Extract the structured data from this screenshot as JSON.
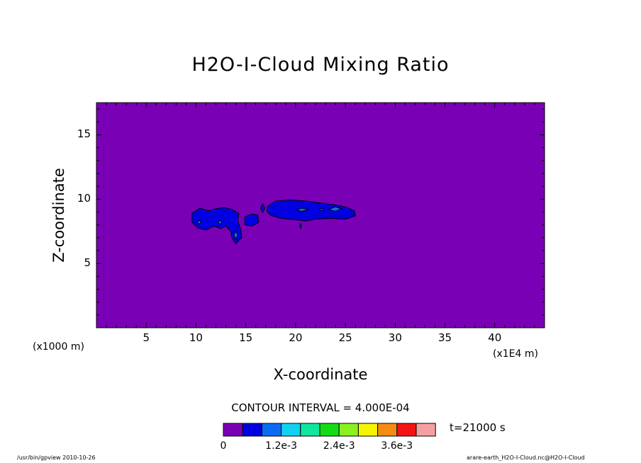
{
  "chart_data": {
    "type": "heatmap",
    "title": "H2O-I-Cloud Mixing Ratio",
    "xlabel": "X-coordinate",
    "ylabel": "Z-coordinate",
    "x_unit_left": "(x1000 m)",
    "x_unit_right": "(x1E4 m)",
    "xlim": [
      0,
      45
    ],
    "ylim": [
      0,
      17.5
    ],
    "x_ticks": [
      5,
      10,
      15,
      20,
      25,
      30,
      35,
      40
    ],
    "y_ticks": [
      5,
      10,
      15
    ],
    "contour_interval_text": "CONTOUR INTERVAL = 4.000E-04",
    "time_label": "t=21000 s",
    "colorbar": {
      "colors": [
        "#7a00b5",
        "#0000e0",
        "#0a6cf5",
        "#0fd2f0",
        "#0fe6a0",
        "#14dc14",
        "#8cf01e",
        "#f5f500",
        "#f58c14",
        "#f51414",
        "#f5a0a0"
      ],
      "labels": [
        "0",
        "1.2e-3",
        "2.4e-3",
        "3.6e-3"
      ],
      "label_positions": [
        0,
        3,
        6,
        9
      ]
    },
    "background_color": "#7a00b5",
    "regions": [
      {
        "level": 1,
        "points": [
          [
            9.6,
            8.9
          ],
          [
            10.4,
            9.3
          ],
          [
            11.2,
            9.1
          ],
          [
            12.0,
            9.25
          ],
          [
            12.8,
            9.35
          ],
          [
            13.6,
            9.2
          ],
          [
            14.3,
            8.9
          ],
          [
            14.2,
            8.3
          ],
          [
            14.5,
            7.6
          ],
          [
            14.6,
            7.0
          ],
          [
            14.3,
            6.8
          ],
          [
            14.0,
            6.5
          ],
          [
            13.6,
            7.0
          ],
          [
            13.5,
            7.5
          ],
          [
            13.0,
            7.9
          ],
          [
            12.5,
            7.7
          ],
          [
            11.8,
            7.9
          ],
          [
            11.0,
            7.6
          ],
          [
            10.2,
            7.75
          ],
          [
            9.6,
            8.2
          ]
        ]
      },
      {
        "level": 1,
        "points": [
          [
            14.9,
            8.6
          ],
          [
            15.6,
            8.85
          ],
          [
            16.2,
            8.75
          ],
          [
            16.3,
            8.2
          ],
          [
            15.6,
            7.9
          ],
          [
            14.9,
            8.0
          ]
        ]
      },
      {
        "level": 1,
        "points": [
          [
            16.5,
            9.3
          ],
          [
            16.7,
            9.65
          ],
          [
            16.9,
            9.3
          ],
          [
            16.7,
            8.95
          ]
        ]
      },
      {
        "level": 1,
        "points": [
          [
            17.2,
            9.45
          ],
          [
            18.0,
            9.85
          ],
          [
            19.5,
            9.95
          ],
          [
            21.0,
            9.85
          ],
          [
            22.5,
            9.7
          ],
          [
            24.0,
            9.55
          ],
          [
            25.0,
            9.4
          ],
          [
            25.9,
            9.1
          ],
          [
            26.0,
            8.7
          ],
          [
            25.0,
            8.45
          ],
          [
            23.5,
            8.5
          ],
          [
            22.0,
            8.45
          ],
          [
            21.0,
            8.3
          ],
          [
            20.0,
            8.4
          ],
          [
            18.5,
            8.5
          ],
          [
            17.5,
            8.75
          ],
          [
            17.1,
            9.05
          ]
        ]
      },
      {
        "level": 2,
        "points": [
          [
            10.1,
            8.2
          ],
          [
            10.3,
            8.35
          ],
          [
            10.5,
            8.2
          ],
          [
            10.3,
            8.05
          ]
        ]
      },
      {
        "level": 2,
        "points": [
          [
            12.2,
            8.2
          ],
          [
            12.4,
            8.35
          ],
          [
            12.6,
            8.2
          ],
          [
            12.4,
            8.05
          ]
        ]
      },
      {
        "level": 2,
        "points": [
          [
            13.8,
            7.2
          ],
          [
            14.0,
            7.5
          ],
          [
            14.2,
            7.2
          ],
          [
            14.0,
            6.9
          ]
        ]
      },
      {
        "level": 2,
        "points": [
          [
            20.1,
            9.15
          ],
          [
            20.6,
            9.3
          ],
          [
            21.3,
            9.2
          ],
          [
            20.6,
            9.05
          ]
        ]
      },
      {
        "level": 2,
        "points": [
          [
            23.3,
            9.2
          ],
          [
            24.0,
            9.4
          ],
          [
            24.6,
            9.25
          ],
          [
            24.0,
            9.05
          ]
        ]
      },
      {
        "level": 2,
        "points": [
          [
            22.4,
            9.2
          ],
          [
            22.6,
            9.3
          ],
          [
            22.8,
            9.2
          ],
          [
            22.6,
            9.1
          ]
        ]
      },
      {
        "level": 1,
        "points": [
          [
            20.4,
            7.9
          ],
          [
            20.5,
            8.1
          ],
          [
            20.6,
            7.9
          ],
          [
            20.5,
            7.7
          ]
        ]
      }
    ]
  },
  "footer": {
    "left": "/usr/bin/gpview  2010-10-26",
    "right": "arare-earth_H2O-I-Cloud.nc@H2O-I-Cloud"
  }
}
